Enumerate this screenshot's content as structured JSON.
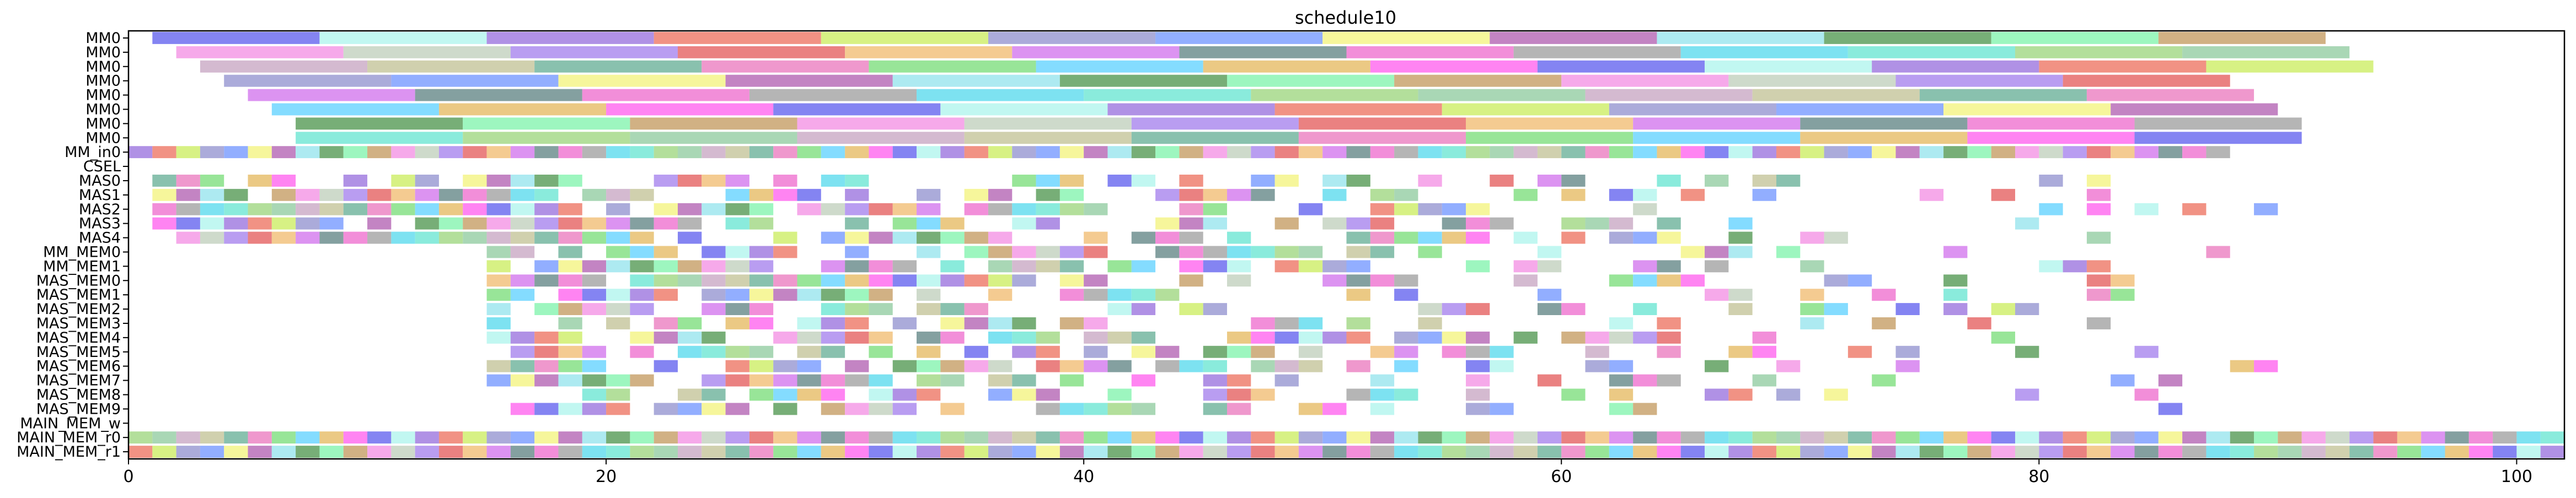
{
  "chart_data": {
    "type": "gantt",
    "title": "schedule10",
    "xlabel": "",
    "ylabel": "",
    "xlim": [
      0,
      102
    ],
    "x_ticks": [
      0,
      20,
      40,
      60,
      80,
      100
    ],
    "grid": false,
    "legend": "none",
    "rows": [
      "MM0",
      "MM0",
      "MM0",
      "MM0",
      "MM0",
      "MM0",
      "MM0",
      "MM0",
      "MM_in0",
      "CSEL",
      "MAS0",
      "MAS1",
      "MAS2",
      "MAS3",
      "MAS4",
      "MM_MEM0",
      "MM_MEM1",
      "MAS_MEM0",
      "MAS_MEM1",
      "MAS_MEM2",
      "MAS_MEM3",
      "MAS_MEM4",
      "MAS_MEM5",
      "MAS_MEM6",
      "MAS_MEM7",
      "MAS_MEM8",
      "MAS_MEM9",
      "MAIN_MEM_w",
      "MAIN_MEM_r0",
      "MAIN_MEM_r1"
    ],
    "bars_approx": [
      {
        "row": 0,
        "start": 1,
        "duration": 7,
        "repeat": 13
      },
      {
        "row": 1,
        "start": 2,
        "duration": 7,
        "repeat": 13
      },
      {
        "row": 2,
        "start": 3,
        "duration": 7,
        "repeat": 13
      },
      {
        "row": 3,
        "start": 4,
        "duration": 7,
        "repeat": 12
      },
      {
        "row": 4,
        "start": 5,
        "duration": 7,
        "repeat": 12
      },
      {
        "row": 5,
        "start": 6,
        "duration": 7,
        "repeat": 12
      },
      {
        "row": 6,
        "start": 7,
        "duration": 7,
        "repeat": 12
      },
      {
        "row": 7,
        "start": 7,
        "duration": 7,
        "repeat": 12
      },
      {
        "row": 8,
        "start": 0,
        "duration": 1,
        "repeat": 88
      },
      {
        "row": 10,
        "start": 1,
        "duration": 1,
        "repeat": 90,
        "sparse": true
      },
      {
        "row": 11,
        "start": 1,
        "duration": 1,
        "repeat": 90,
        "sparse": true
      },
      {
        "row": 12,
        "start": 1,
        "duration": 1,
        "repeat": 90,
        "sparse": true
      },
      {
        "row": 13,
        "start": 1,
        "duration": 1,
        "repeat": 90,
        "sparse": true
      },
      {
        "row": 14,
        "start": 1,
        "duration": 1,
        "repeat": 90,
        "sparse": true
      },
      {
        "row": 15,
        "start": 15,
        "duration": 1,
        "repeat": 75,
        "sparse": true
      },
      {
        "row": 16,
        "start": 15,
        "duration": 1,
        "repeat": 75,
        "sparse": true
      },
      {
        "row": 17,
        "start": 15,
        "duration": 1,
        "repeat": 75,
        "sparse": true
      },
      {
        "row": 18,
        "start": 15,
        "duration": 1,
        "repeat": 75,
        "sparse": true
      },
      {
        "row": 19,
        "start": 15,
        "duration": 1,
        "repeat": 75,
        "sparse": true
      },
      {
        "row": 20,
        "start": 15,
        "duration": 1,
        "repeat": 75,
        "sparse": true
      },
      {
        "row": 21,
        "start": 15,
        "duration": 1,
        "repeat": 75,
        "sparse": true
      },
      {
        "row": 22,
        "start": 15,
        "duration": 1,
        "repeat": 75,
        "sparse": true
      },
      {
        "row": 23,
        "start": 15,
        "duration": 1,
        "repeat": 75,
        "sparse": true
      },
      {
        "row": 24,
        "start": 15,
        "duration": 1,
        "repeat": 75,
        "sparse": true
      },
      {
        "row": 25,
        "start": 15,
        "duration": 1,
        "repeat": 75,
        "sparse": true
      },
      {
        "row": 26,
        "start": 15,
        "duration": 1,
        "repeat": 75,
        "sparse": true
      },
      {
        "row": 28,
        "start": 0,
        "duration": 1,
        "repeat": 102
      },
      {
        "row": 29,
        "start": 0,
        "duration": 1,
        "repeat": 102
      }
    ],
    "colors": [
      "#6f6ff0",
      "#76e8d6",
      "#c9a36f",
      "#b6f6ef",
      "#a6d98a",
      "#f49ae6",
      "#a27ee0",
      "#9ad0a8",
      "#c6d3c2",
      "#ee7f6e",
      "#ccaec8",
      "#ad8cee",
      "#d0ee6e",
      "#c8c8a0",
      "#e66b6b",
      "#9c9cd4",
      "#74b6a0",
      "#f2c27e",
      "#7fa0ff",
      "#ec86c4",
      "#d680ee",
      "#f5f58a",
      "#86e086",
      "#6f8f8f",
      "#b96fb9",
      "#6fd6ff",
      "#f07ad2",
      "#9fe6ef",
      "#e8c06f",
      "#a8a8a8",
      "#5fa05f",
      "#ff6ff0",
      "#66ddee",
      "#8cf5b4"
    ]
  }
}
